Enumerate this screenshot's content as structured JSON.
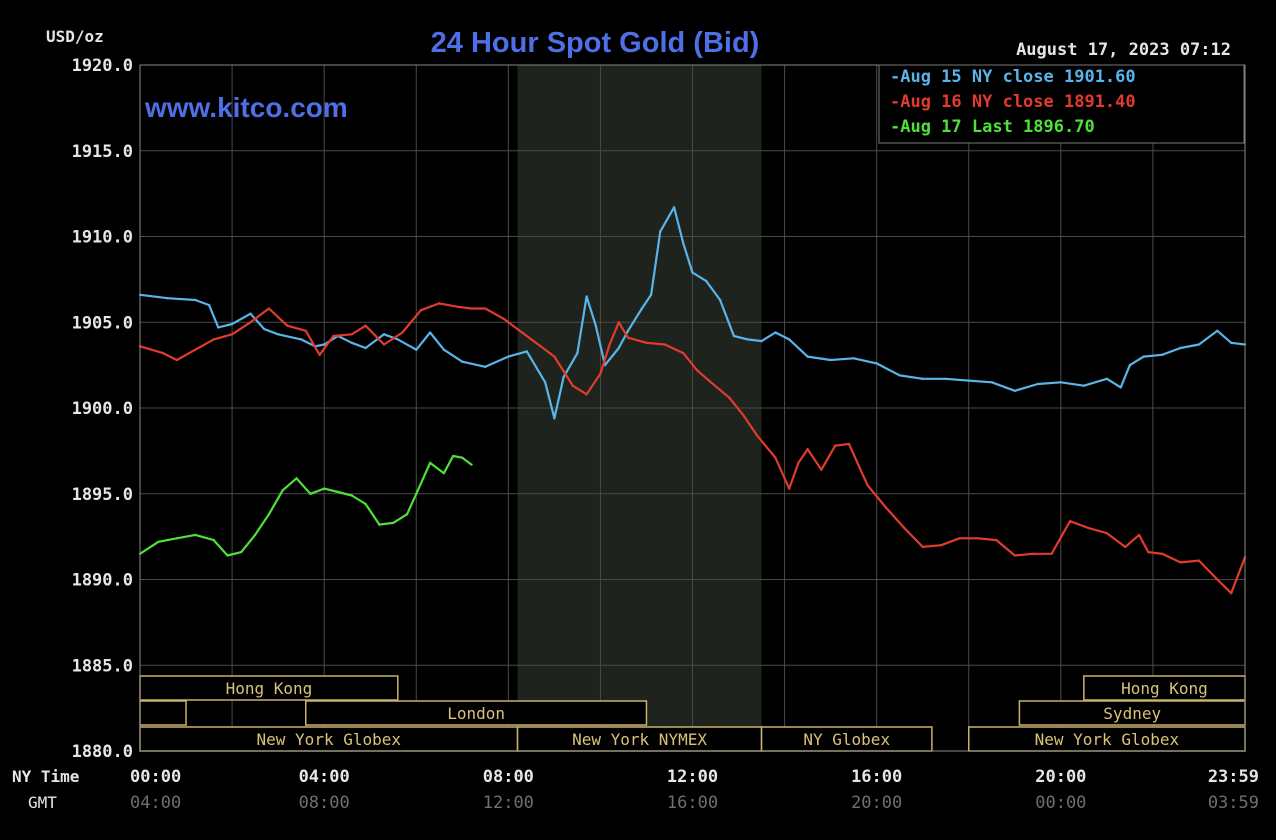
{
  "chart_data": {
    "type": "line",
    "title": "24 Hour Spot Gold (Bid)",
    "watermark": "www.kitco.com",
    "timestamp": "August 17, 2023 07:12",
    "ylabel": "USD/oz",
    "ylim": [
      1880,
      1920
    ],
    "y_ticks": [
      "1920.0",
      "1915.0",
      "1910.0",
      "1905.0",
      "1900.0",
      "1895.0",
      "1890.0",
      "1885.0",
      "1880.0"
    ],
    "x_row_label": "NY Time",
    "gmt_row_label": "GMT",
    "x_ticks_ny": [
      "00:00",
      "04:00",
      "08:00",
      "12:00",
      "16:00",
      "20:00",
      "23:59"
    ],
    "x_ticks_gmt": [
      "04:00",
      "08:00",
      "12:00",
      "16:00",
      "20:00",
      "00:00",
      "03:59"
    ],
    "xlim": [
      0,
      24
    ],
    "highlight_range": [
      8.2,
      13.5
    ],
    "grid": true,
    "legend_position": "top-right",
    "legend": [
      {
        "label": "Aug 15 NY close",
        "value": "1901.60",
        "color": "#5ab4ea"
      },
      {
        "label": "Aug 16 NY close",
        "value": "1891.40",
        "color": "#e23b2e"
      },
      {
        "label": "Aug 17 Last",
        "value": "1896.70",
        "color": "#4fe03a"
      }
    ],
    "series": [
      {
        "name": "Aug 15 NY close",
        "color": "#5ab4ea",
        "x": [
          0,
          0.6,
          1.2,
          1.5,
          1.7,
          2.0,
          2.4,
          2.7,
          3.0,
          3.5,
          3.8,
          4.0,
          4.3,
          4.6,
          4.9,
          5.3,
          5.6,
          6.0,
          6.3,
          6.6,
          7.0,
          7.5,
          8.0,
          8.4,
          8.8,
          9.0,
          9.2,
          9.5,
          9.7,
          9.9,
          10.1,
          10.4,
          10.6,
          10.9,
          11.1,
          11.3,
          11.6,
          11.8,
          12.0,
          12.3,
          12.6,
          12.9,
          13.2,
          13.5,
          13.8,
          14.1,
          14.5,
          15.0,
          15.5,
          16.0,
          16.5,
          17.0,
          17.5,
          18.0,
          18.5,
          19.0,
          19.5,
          20.0,
          20.5,
          21.0,
          21.3,
          21.5,
          21.8,
          22.2,
          22.6,
          23.0,
          23.4,
          23.7,
          24.0
        ],
        "y": [
          1906.6,
          1906.4,
          1906.3,
          1906.0,
          1904.7,
          1904.9,
          1905.5,
          1904.6,
          1904.3,
          1904.0,
          1903.6,
          1903.7,
          1904.2,
          1903.8,
          1903.5,
          1904.3,
          1904.0,
          1903.4,
          1904.4,
          1903.4,
          1902.7,
          1902.4,
          1903.0,
          1903.3,
          1901.5,
          1899.4,
          1901.8,
          1903.2,
          1906.5,
          1904.8,
          1902.5,
          1903.5,
          1904.5,
          1905.8,
          1906.6,
          1910.3,
          1911.7,
          1909.6,
          1907.9,
          1907.4,
          1906.3,
          1904.2,
          1904.0,
          1903.9,
          1904.4,
          1904.0,
          1903.0,
          1902.8,
          1902.9,
          1902.6,
          1901.9,
          1901.7,
          1901.7,
          1901.6,
          1901.5,
          1901.0,
          1901.4,
          1901.5,
          1901.3,
          1901.7,
          1901.2,
          1902.5,
          1903.0,
          1903.1,
          1903.5,
          1903.7,
          1904.5,
          1903.8,
          1903.7
        ]
      },
      {
        "name": "Aug 16 NY close",
        "color": "#e23b2e",
        "x": [
          0,
          0.5,
          0.8,
          1.2,
          1.6,
          2.0,
          2.4,
          2.8,
          3.2,
          3.6,
          3.9,
          4.2,
          4.6,
          4.9,
          5.3,
          5.7,
          6.1,
          6.5,
          6.9,
          7.2,
          7.5,
          7.9,
          8.3,
          8.7,
          9.0,
          9.4,
          9.7,
          10.0,
          10.2,
          10.4,
          10.6,
          11.0,
          11.4,
          11.8,
          12.1,
          12.4,
          12.8,
          13.1,
          13.4,
          13.8,
          14.1,
          14.3,
          14.5,
          14.8,
          15.1,
          15.4,
          15.8,
          16.2,
          16.6,
          17.0,
          17.4,
          17.8,
          18.2,
          18.6,
          19.0,
          19.4,
          19.8,
          20.2,
          20.6,
          21.0,
          21.4,
          21.7,
          21.9,
          22.2,
          22.6,
          23.0,
          23.4,
          23.7,
          24.0
        ],
        "y": [
          1903.6,
          1903.2,
          1902.8,
          1903.4,
          1904.0,
          1904.3,
          1905.0,
          1905.8,
          1904.8,
          1904.5,
          1903.1,
          1904.2,
          1904.3,
          1904.8,
          1903.7,
          1904.4,
          1905.7,
          1906.1,
          1905.9,
          1905.8,
          1905.8,
          1905.2,
          1904.4,
          1903.6,
          1903.0,
          1901.3,
          1900.8,
          1902.0,
          1903.7,
          1905.0,
          1904.1,
          1903.8,
          1903.7,
          1903.2,
          1902.2,
          1901.5,
          1900.6,
          1899.6,
          1898.4,
          1897.1,
          1895.3,
          1896.8,
          1897.6,
          1896.4,
          1897.8,
          1897.9,
          1895.5,
          1894.2,
          1893.0,
          1891.9,
          1892.0,
          1892.4,
          1892.4,
          1892.3,
          1891.4,
          1891.5,
          1891.5,
          1893.4,
          1893.0,
          1892.7,
          1891.9,
          1892.6,
          1891.6,
          1891.5,
          1891.0,
          1891.1,
          1890.0,
          1889.2,
          1891.3
        ]
      },
      {
        "name": "Aug 17 Last",
        "color": "#4fe03a",
        "x": [
          0,
          0.4,
          0.8,
          1.2,
          1.6,
          1.9,
          2.2,
          2.5,
          2.8,
          3.1,
          3.4,
          3.7,
          4.0,
          4.3,
          4.6,
          4.9,
          5.2,
          5.5,
          5.8,
          6.0,
          6.3,
          6.6,
          6.8,
          7.0,
          7.2
        ],
        "y": [
          1891.5,
          1892.2,
          1892.4,
          1892.6,
          1892.3,
          1891.4,
          1891.6,
          1892.6,
          1893.8,
          1895.2,
          1895.9,
          1895.0,
          1895.3,
          1895.1,
          1894.9,
          1894.4,
          1893.2,
          1893.3,
          1893.8,
          1895.0,
          1896.8,
          1896.2,
          1897.2,
          1897.1,
          1896.7
        ]
      }
    ],
    "sessions": [
      {
        "label": "Hong Kong",
        "start": 0.0,
        "end": 5.6,
        "row": 0
      },
      {
        "label": "",
        "start": 0.0,
        "end": 1.0,
        "row": 1
      },
      {
        "label": "London",
        "start": 3.6,
        "end": 11.0,
        "row": 1
      },
      {
        "label": "New York Globex",
        "start": 0.0,
        "end": 8.2,
        "row": 2
      },
      {
        "label": "New York NYMEX",
        "start": 8.2,
        "end": 13.5,
        "row": 2
      },
      {
        "label": "NY Globex",
        "start": 13.5,
        "end": 17.2,
        "row": 2
      },
      {
        "label": "Hong Kong",
        "start": 20.5,
        "end": 24.0,
        "row": 0
      },
      {
        "label": "Sydney",
        "start": 19.1,
        "end": 24.0,
        "row": 1
      },
      {
        "label": "New York Globex",
        "start": 18.0,
        "end": 24.0,
        "row": 2
      }
    ]
  }
}
